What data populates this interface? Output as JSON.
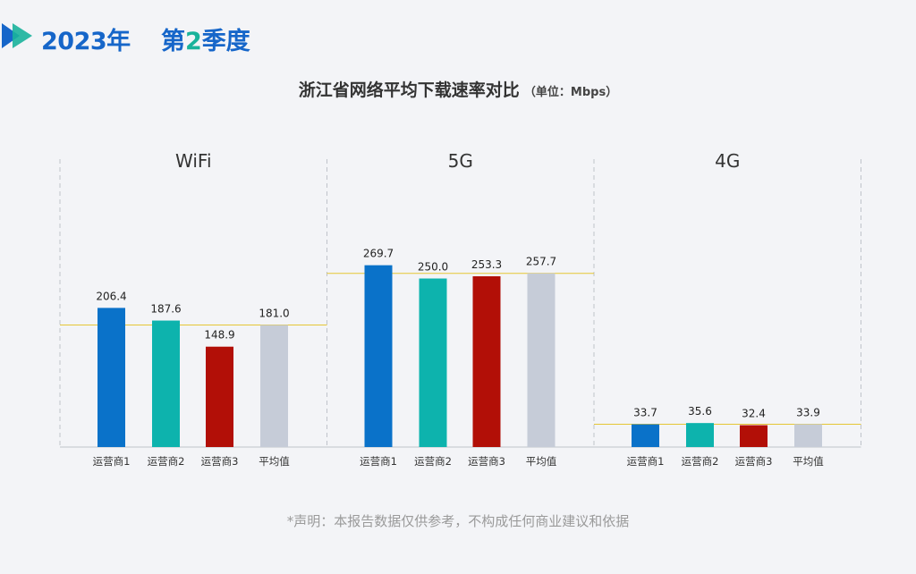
{
  "header": {
    "year": "2023年",
    "quarter_prefix": "第",
    "quarter_number": "2",
    "quarter_suffix": "季度"
  },
  "title": {
    "main": "浙江省网络平均下载速率对比",
    "unit": "（单位：Mbps）"
  },
  "footnote": "*声明：本报告数据仅供参考，不构成任何商业建议和依据",
  "colors": {
    "operator1": "#0a72c9",
    "operator2": "#0db3ad",
    "operator3": "#b20f07",
    "average": "#c6ccd8",
    "average_line": "#e5c634",
    "logo_blue": "#1666c9",
    "logo_teal": "#19b39b"
  },
  "chart_data": {
    "type": "bar",
    "unit": "Mbps",
    "categories": [
      "运营商1",
      "运营商2",
      "运营商3",
      "平均值"
    ],
    "groups": [
      {
        "name": "WiFi",
        "values": [
          206.4,
          187.6,
          148.9,
          181.0
        ],
        "labels": [
          "206.4",
          "187.6",
          "148.9",
          "181.0"
        ]
      },
      {
        "name": "5G",
        "values": [
          269.7,
          250.0,
          253.3,
          257.7
        ],
        "labels": [
          "269.7",
          "250.0",
          "253.3",
          "257.7"
        ]
      },
      {
        "name": "4G",
        "values": [
          33.7,
          35.6,
          32.4,
          33.9
        ],
        "labels": [
          "33.7",
          "35.6",
          "32.4",
          "33.9"
        ]
      }
    ],
    "ylim": [
      0,
      300
    ],
    "reference_line": "average",
    "grid": false,
    "legend": "none"
  }
}
